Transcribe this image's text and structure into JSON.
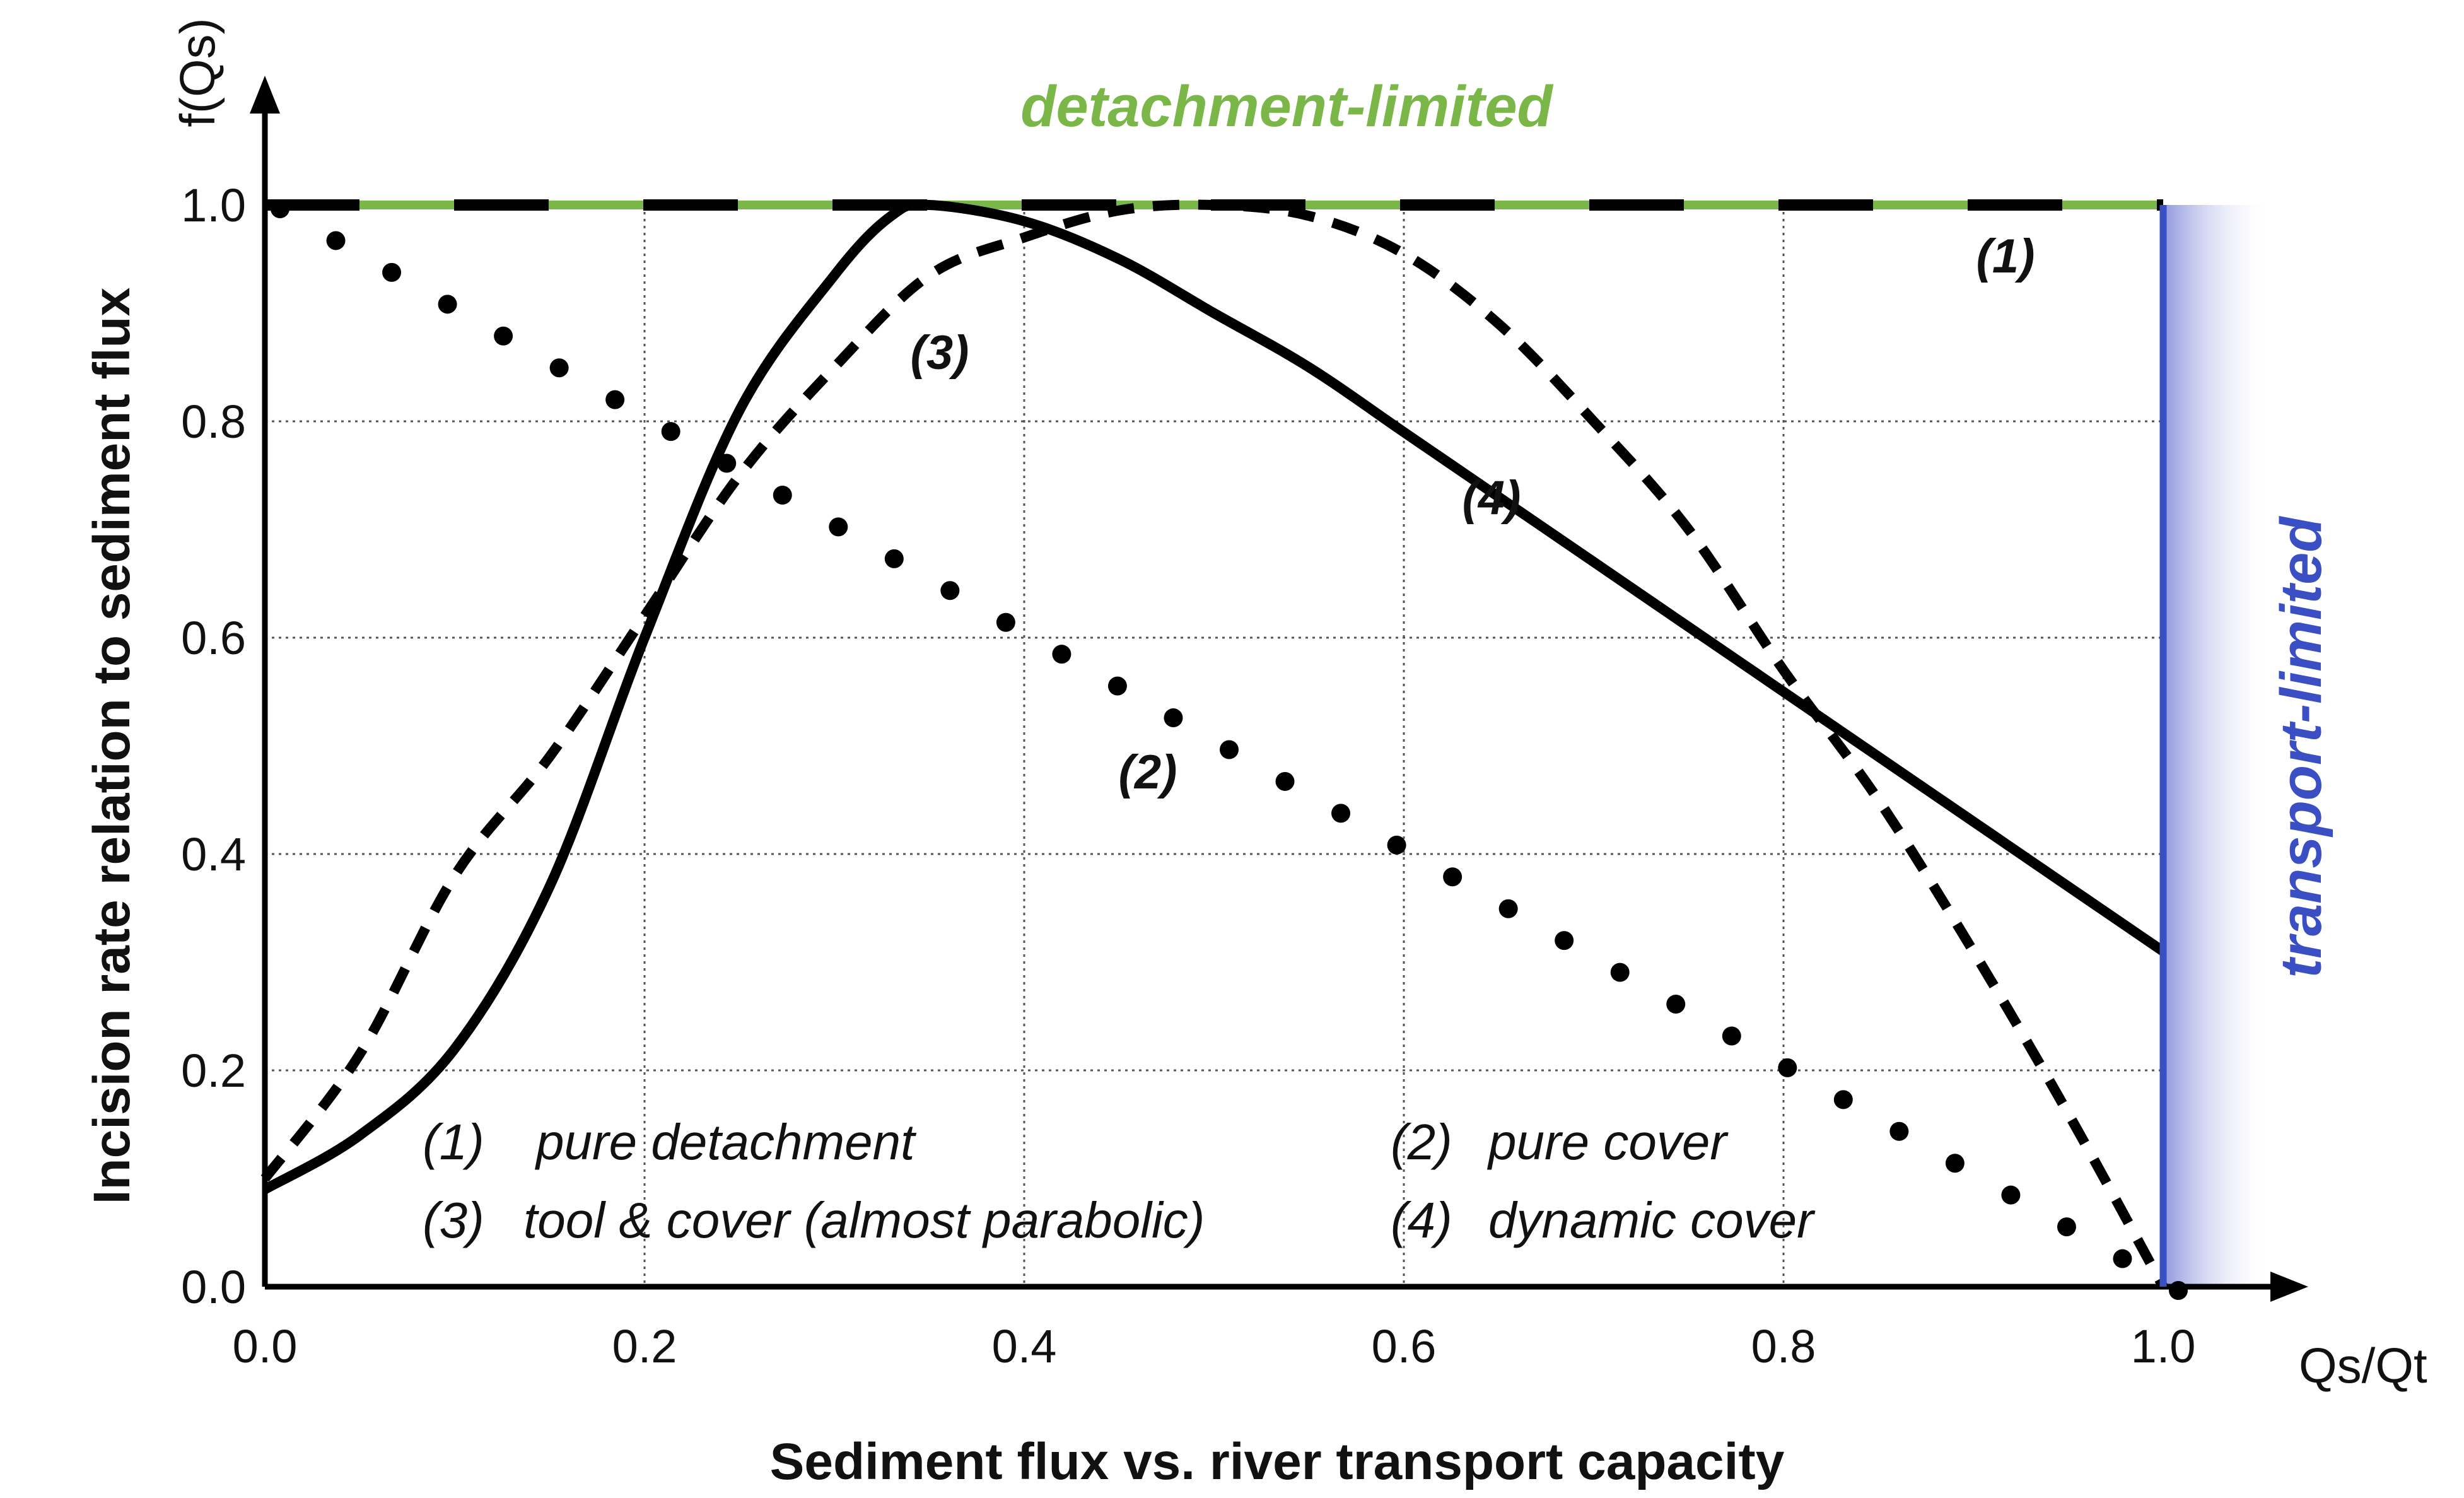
{
  "chart_data": {
    "type": "line",
    "title": "",
    "xlabel": "Sediment flux vs. river transport capacity",
    "ylabel": "Incision rate relation to sediment flux",
    "x_unit_label": "Qs/Qt",
    "y_unit_label": "f(Qs)",
    "xlim": [
      0.0,
      1.0
    ],
    "ylim": [
      0.0,
      1.0
    ],
    "xticks": [
      "0.0",
      "0.2",
      "0.4",
      "0.6",
      "0.8",
      "1.0"
    ],
    "yticks": [
      "0.0",
      "0.2",
      "0.4",
      "0.6",
      "0.8",
      "1.0"
    ],
    "grid": true,
    "regimes": {
      "detachment_limited": "detachment-limited",
      "transport_limited": "transport-limited"
    },
    "colors": {
      "detachment": "#7ab648",
      "transport": "#3b4fc4",
      "curve": "#000000"
    },
    "series": [
      {
        "id": "1",
        "curve_label": "(1)",
        "style": "long-dash",
        "x": [
          0.0,
          1.0
        ],
        "y": [
          1.0,
          1.0
        ]
      },
      {
        "id": "2",
        "curve_label": "(2)",
        "style": "dots",
        "x": [
          0.0,
          0.1,
          0.2,
          0.3,
          0.4,
          0.5,
          0.6,
          0.7,
          0.8,
          0.9,
          1.0
        ],
        "y": [
          1.0,
          0.9,
          0.8,
          0.7,
          0.6,
          0.5,
          0.4,
          0.3,
          0.2,
          0.1,
          0.0
        ]
      },
      {
        "id": "3",
        "curve_label": "(3)",
        "style": "short-dash",
        "x": [
          0.0,
          0.05,
          0.1,
          0.15,
          0.2,
          0.25,
          0.3,
          0.35,
          0.4,
          0.45,
          0.5,
          0.55,
          0.6,
          0.65,
          0.7,
          0.75,
          0.8,
          0.85,
          0.9,
          0.95,
          1.0
        ],
        "y": [
          0.1,
          0.215,
          0.38,
          0.49,
          0.62,
          0.75,
          0.85,
          0.935,
          0.97,
          0.995,
          1.0,
          0.99,
          0.955,
          0.89,
          0.8,
          0.7,
          0.57,
          0.45,
          0.31,
          0.16,
          0.0
        ]
      },
      {
        "id": "4",
        "curve_label": "(4)",
        "style": "solid",
        "x": [
          0.0,
          0.05,
          0.1,
          0.15,
          0.2,
          0.25,
          0.3,
          0.33,
          0.35,
          0.4,
          0.45,
          0.5,
          0.55,
          0.6,
          0.65,
          0.7,
          0.75,
          0.8,
          0.85,
          0.9,
          0.95,
          1.0
        ],
        "y": [
          0.09,
          0.14,
          0.22,
          0.37,
          0.6,
          0.81,
          0.935,
          0.99,
          1.0,
          0.985,
          0.95,
          0.9,
          0.85,
          0.79,
          0.73,
          0.67,
          0.61,
          0.55,
          0.49,
          0.43,
          0.37,
          0.31
        ]
      }
    ],
    "legend": [
      {
        "num": "(1)",
        "text": "pure detachment"
      },
      {
        "num": "(2)",
        "text": "pure cover"
      },
      {
        "num": "(3)",
        "text": "tool & cover (almost parabolic)"
      },
      {
        "num": "(4)",
        "text": "dynamic cover"
      }
    ]
  }
}
